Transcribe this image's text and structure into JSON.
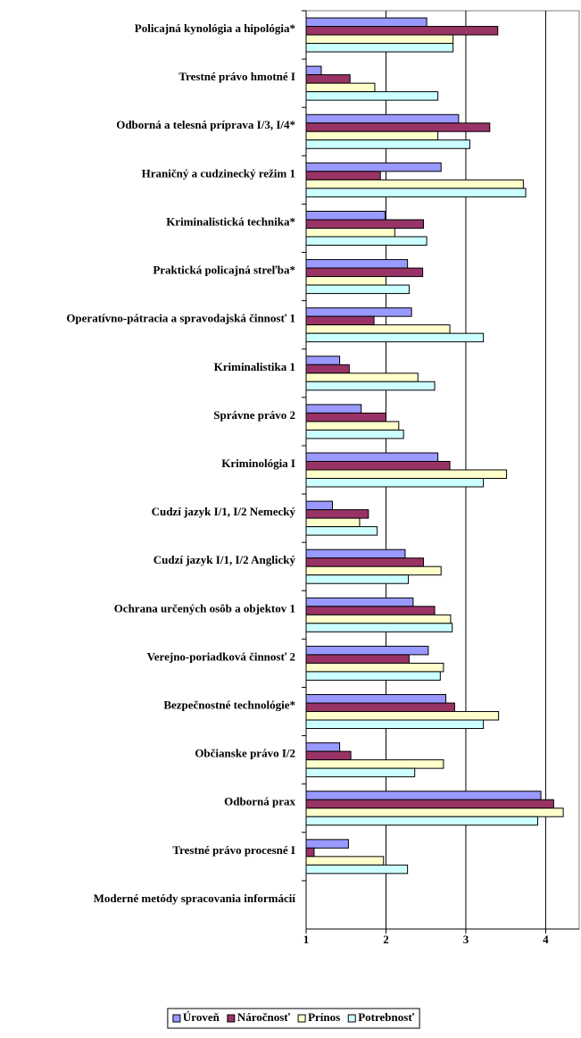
{
  "chart_data": {
    "type": "hbar",
    "categories": [
      "Policajná kynológia a hipológia*",
      "Trestné právo hmotné I",
      "Odborná a telesná príprava I/3, I/4*",
      "Hraničný a cudzinecký režim 1",
      "Kriminalistická technika*",
      "Praktická policajná streľba*",
      "Operatívno-pátracia a spravodajská činnosť 1",
      "Kriminalistika 1",
      "Správne právo 2",
      "Kriminológia I",
      "Cudzí jazyk I/1, I/2 Nemecký",
      "Cudzí jazyk I/1, I/2 Anglický",
      "Ochrana určených osôb a objektov 1",
      "Verejno-poriadková činnosť 2",
      "Bezpečnostné technológie*",
      "Občianske právo I/2",
      "Odborná prax",
      "Trestné právo procesné I",
      "Moderné metódy spracovania informácií"
    ],
    "series": [
      {
        "name": "Úroveň",
        "color": "#9999ff",
        "values": [
          2.51,
          1.19,
          2.91,
          2.69,
          1.99,
          2.27,
          2.32,
          1.42,
          1.69,
          2.65,
          1.33,
          2.24,
          2.34,
          2.53,
          2.75,
          1.42,
          3.94,
          1.53,
          null
        ]
      },
      {
        "name": "Náročnosť",
        "color": "#993366",
        "values": [
          3.4,
          1.55,
          3.3,
          1.93,
          2.47,
          2.46,
          1.85,
          1.54,
          2.0,
          2.8,
          1.78,
          2.47,
          2.61,
          2.29,
          2.86,
          1.56,
          4.1,
          1.1,
          null
        ]
      },
      {
        "name": "Prínos",
        "color": "#ffffcc",
        "values": [
          2.84,
          1.86,
          2.65,
          3.72,
          2.11,
          2.0,
          2.8,
          2.4,
          2.16,
          3.51,
          1.67,
          2.69,
          2.81,
          2.72,
          3.41,
          2.72,
          4.22,
          1.97,
          null
        ]
      },
      {
        "name": "Potrebnosť",
        "color": "#ccffff",
        "values": [
          2.84,
          2.65,
          3.05,
          3.75,
          2.51,
          2.29,
          3.22,
          2.61,
          2.22,
          3.22,
          1.89,
          2.28,
          2.83,
          2.68,
          3.22,
          2.36,
          3.9,
          2.27,
          null
        ]
      }
    ],
    "xlim": [
      1,
      4.42
    ],
    "xticks": [
      1,
      2,
      3,
      4
    ],
    "grid": true,
    "legend": "bottom"
  }
}
